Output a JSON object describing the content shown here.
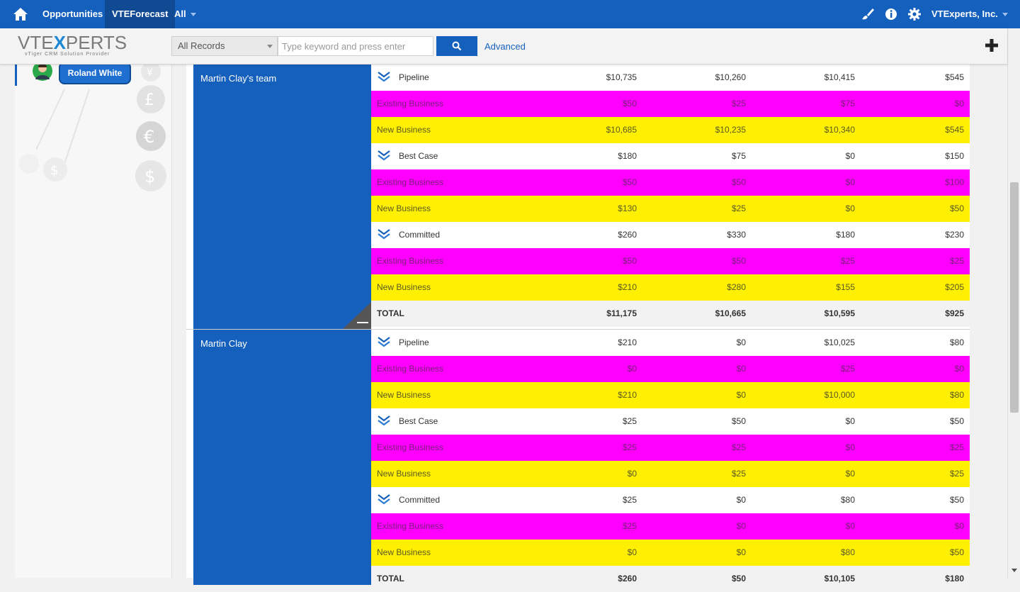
{
  "topbar": {
    "nav": [
      {
        "label": "Opportunities"
      },
      {
        "label": "VTEForecast"
      },
      {
        "label": "All"
      }
    ],
    "company": "VTExperts, Inc."
  },
  "subbar": {
    "logo_main_left": "VTE",
    "logo_main_x": "X",
    "logo_main_right": "PERTS",
    "logo_sub": "vTiger CRM Solution Provider",
    "records_select": "All Records",
    "search_placeholder": "Type keyword and press enter",
    "advanced_label": "Advanced"
  },
  "sidebar": {
    "user": "Roland White"
  },
  "groups": [
    {
      "name": "Martin Clay's team",
      "rows": [
        {
          "type": "white",
          "label": "Pipeline",
          "values": [
            "$10,735",
            "$10,260",
            "$10,415",
            "$545"
          ]
        },
        {
          "type": "pink",
          "label": "Existing Business",
          "values": [
            "$50",
            "$25",
            "$75",
            "$0"
          ]
        },
        {
          "type": "yellow",
          "label": "New Business",
          "values": [
            "$10,685",
            "$10,235",
            "$10,340",
            "$545"
          ]
        },
        {
          "type": "white",
          "label": "Best Case",
          "values": [
            "$180",
            "$75",
            "$0",
            "$150"
          ]
        },
        {
          "type": "pink",
          "label": "Existing Business",
          "values": [
            "$50",
            "$50",
            "$0",
            "$100"
          ]
        },
        {
          "type": "yellow",
          "label": "New Business",
          "values": [
            "$130",
            "$25",
            "$0",
            "$50"
          ]
        },
        {
          "type": "white",
          "label": "Committed",
          "values": [
            "$260",
            "$330",
            "$180",
            "$230"
          ]
        },
        {
          "type": "pink",
          "label": "Existing Business",
          "values": [
            "$50",
            "$50",
            "$25",
            "$25"
          ]
        },
        {
          "type": "yellow",
          "label": "New Business",
          "values": [
            "$210",
            "$280",
            "$155",
            "$205"
          ]
        },
        {
          "type": "total",
          "label": "TOTAL",
          "values": [
            "$11,175",
            "$10,665",
            "$10,595",
            "$925"
          ]
        }
      ]
    },
    {
      "name": "Martin Clay",
      "rows": [
        {
          "type": "white",
          "label": "Pipeline",
          "values": [
            "$210",
            "$0",
            "$10,025",
            "$80"
          ]
        },
        {
          "type": "pink",
          "label": "Existing Business",
          "values": [
            "$0",
            "$0",
            "$25",
            "$0"
          ]
        },
        {
          "type": "yellow",
          "label": "New Business",
          "values": [
            "$210",
            "$0",
            "$10,000",
            "$80"
          ]
        },
        {
          "type": "white",
          "label": "Best Case",
          "values": [
            "$25",
            "$50",
            "$0",
            "$50"
          ]
        },
        {
          "type": "pink",
          "label": "Existing Business",
          "values": [
            "$25",
            "$25",
            "$0",
            "$25"
          ]
        },
        {
          "type": "yellow",
          "label": "New Business",
          "values": [
            "$0",
            "$25",
            "$0",
            "$25"
          ]
        },
        {
          "type": "white",
          "label": "Committed",
          "values": [
            "$25",
            "$0",
            "$80",
            "$50"
          ]
        },
        {
          "type": "pink",
          "label": "Existing Business",
          "values": [
            "$25",
            "$0",
            "$0",
            "$0"
          ]
        },
        {
          "type": "yellow",
          "label": "New Business",
          "values": [
            "$0",
            "$0",
            "$80",
            "$50"
          ]
        },
        {
          "type": "total",
          "label": "TOTAL",
          "values": [
            "$260",
            "$50",
            "$10,105",
            "$180"
          ]
        }
      ]
    }
  ],
  "colors": {
    "primary": "#1560bd",
    "existing_business": "#ff00ff",
    "new_business": "#ffef00"
  }
}
